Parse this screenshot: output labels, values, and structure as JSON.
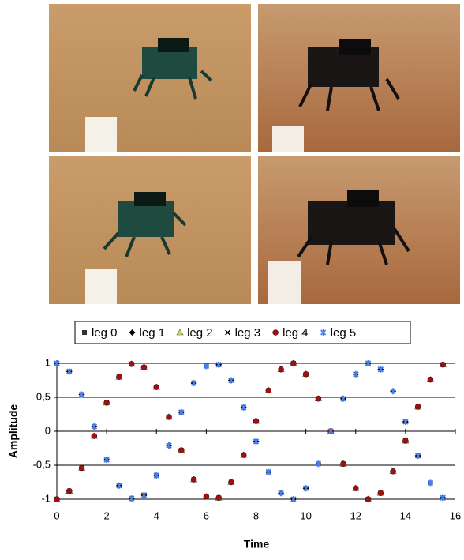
{
  "chart_data": {
    "type": "scatter",
    "x_label": "Time",
    "y_label": "Amplitude",
    "x": [
      0,
      0.5,
      1,
      1.5,
      2,
      2.5,
      3,
      3.5,
      4,
      4.5,
      5,
      5.5,
      6,
      6.5,
      7,
      7.5,
      8,
      8.5,
      9,
      9.5,
      10,
      10.5,
      11,
      11.5,
      12,
      12.5,
      13,
      13.5,
      14,
      14.5,
      15,
      15.5
    ],
    "series": [
      {
        "name": "leg 0",
        "color": "#333333",
        "marker": "square",
        "values": [
          -1,
          -0.88,
          -0.54,
          -0.07,
          0.42,
          0.8,
          0.99,
          0.94,
          0.65,
          0.21,
          -0.28,
          -0.71,
          -0.96,
          -0.98,
          -0.75,
          -0.35,
          0.15,
          0.6,
          0.91,
          1,
          0.84,
          0.48,
          0,
          -0.48,
          -0.84,
          -1,
          -0.91,
          -0.59,
          -0.14,
          0.36,
          0.76,
          0.98
        ]
      },
      {
        "name": "leg 1",
        "color": "#000000",
        "marker": "diamond",
        "values": [
          1,
          0.88,
          0.54,
          0.07,
          -0.42,
          -0.8,
          -0.99,
          -0.94,
          -0.65,
          -0.21,
          0.28,
          0.71,
          0.96,
          0.98,
          0.75,
          0.35,
          -0.15,
          -0.6,
          -0.91,
          -1,
          -0.84,
          -0.48,
          0,
          0.48,
          0.84,
          1,
          0.91,
          0.59,
          0.14,
          -0.36,
          -0.76,
          -0.98
        ]
      },
      {
        "name": "leg 2",
        "color": "#d8d860",
        "marker": "triangle",
        "values": [
          -1,
          -0.88,
          -0.54,
          -0.07,
          0.42,
          0.8,
          0.99,
          0.94,
          0.65,
          0.21,
          -0.28,
          -0.71,
          -0.96,
          -0.98,
          -0.75,
          -0.35,
          0.15,
          0.6,
          0.91,
          1,
          0.84,
          0.48,
          0,
          -0.48,
          -0.84,
          -1,
          -0.91,
          -0.59,
          -0.14,
          0.36,
          0.76,
          0.98
        ]
      },
      {
        "name": "leg 3",
        "color": "#000000",
        "marker": "cross",
        "values": [
          1,
          0.88,
          0.54,
          0.07,
          -0.42,
          -0.8,
          -0.99,
          -0.94,
          -0.65,
          -0.21,
          0.28,
          0.71,
          0.96,
          0.98,
          0.75,
          0.35,
          -0.15,
          -0.6,
          -0.91,
          -1,
          -0.84,
          -0.48,
          0,
          0.48,
          0.84,
          1,
          0.91,
          0.59,
          0.14,
          -0.36,
          -0.76,
          -0.98
        ]
      },
      {
        "name": "leg 4",
        "color": "#a01010",
        "marker": "circle",
        "values": [
          -1,
          -0.88,
          -0.54,
          -0.07,
          0.42,
          0.8,
          0.99,
          0.94,
          0.65,
          0.21,
          -0.28,
          -0.71,
          -0.96,
          -0.98,
          -0.75,
          -0.35,
          0.15,
          0.6,
          0.91,
          1,
          0.84,
          0.48,
          0,
          -0.48,
          -0.84,
          -1,
          -0.91,
          -0.59,
          -0.14,
          0.36,
          0.76,
          0.98
        ]
      },
      {
        "name": "leg 5",
        "color": "#4a7ff0",
        "marker": "star",
        "values": [
          1,
          0.88,
          0.54,
          0.07,
          -0.42,
          -0.8,
          -0.99,
          -0.94,
          -0.65,
          -0.21,
          0.28,
          0.71,
          0.96,
          0.98,
          0.75,
          0.35,
          -0.15,
          -0.6,
          -0.91,
          -1,
          -0.84,
          -0.48,
          0,
          0.48,
          0.84,
          1,
          0.91,
          0.59,
          0.14,
          -0.36,
          -0.76,
          -0.98
        ]
      }
    ],
    "xlim": [
      0,
      16
    ],
    "xticks": [
      0,
      2,
      4,
      6,
      8,
      10,
      12,
      14,
      16
    ],
    "ylim": [
      -1,
      1
    ],
    "yticks": [
      -1,
      {
        "value": -0.5,
        "label": "-0,5"
      },
      0,
      {
        "value": 0.5,
        "label": "0,5"
      },
      1
    ],
    "grid": true,
    "legend": "top"
  }
}
